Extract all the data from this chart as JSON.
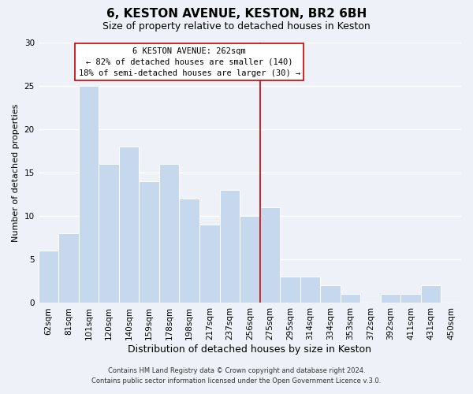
{
  "title": "6, KESTON AVENUE, KESTON, BR2 6BH",
  "subtitle": "Size of property relative to detached houses in Keston",
  "xlabel": "Distribution of detached houses by size in Keston",
  "ylabel": "Number of detached properties",
  "bar_labels": [
    "62sqm",
    "81sqm",
    "101sqm",
    "120sqm",
    "140sqm",
    "159sqm",
    "178sqm",
    "198sqm",
    "217sqm",
    "237sqm",
    "256sqm",
    "275sqm",
    "295sqm",
    "314sqm",
    "334sqm",
    "353sqm",
    "372sqm",
    "392sqm",
    "411sqm",
    "431sqm",
    "450sqm"
  ],
  "bar_values": [
    6,
    8,
    25,
    16,
    18,
    14,
    16,
    12,
    9,
    13,
    10,
    11,
    3,
    3,
    2,
    1,
    0,
    1,
    1,
    2,
    0
  ],
  "bar_color": "#c5d8ed",
  "bar_edge_color": "#ffffff",
  "background_color": "#eef2f8",
  "grid_color": "#ffffff",
  "ylim": [
    0,
    30
  ],
  "yticks": [
    0,
    5,
    10,
    15,
    20,
    25,
    30
  ],
  "property_line_x": 10.5,
  "property_label": "6 KESTON AVENUE: 262sqm",
  "annotation_line1": "← 82% of detached houses are smaller (140)",
  "annotation_line2": "18% of semi-detached houses are larger (30) →",
  "footnote1": "Contains HM Land Registry data © Crown copyright and database right 2024.",
  "footnote2": "Contains public sector information licensed under the Open Government Licence v.3.0.",
  "title_fontsize": 11,
  "subtitle_fontsize": 9,
  "xlabel_fontsize": 9,
  "ylabel_fontsize": 8,
  "tick_fontsize": 7.5,
  "annot_fontsize": 7.5
}
